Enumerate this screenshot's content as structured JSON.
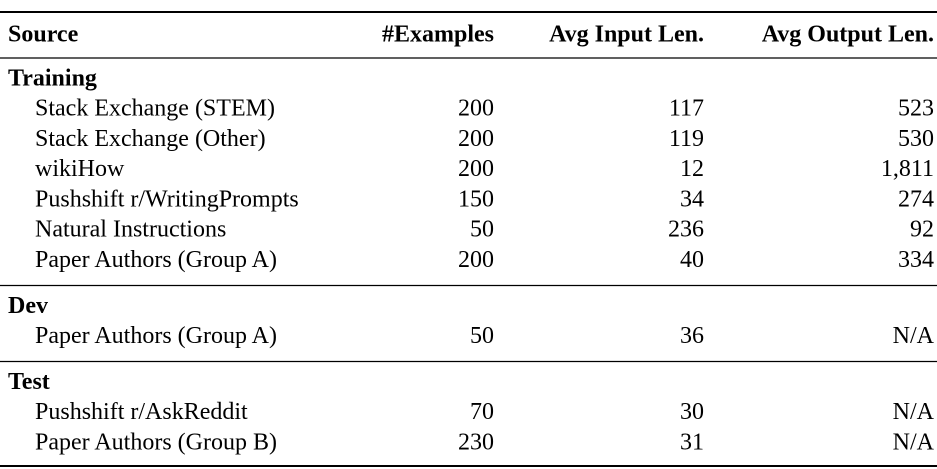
{
  "table": {
    "header": [
      "Source",
      "#Examples",
      "Avg Input Len.",
      "Avg Output Len."
    ],
    "sections": [
      {
        "title": "Training",
        "rows": [
          [
            "Stack Exchange (STEM)",
            "200",
            "117",
            "523"
          ],
          [
            "Stack Exchange (Other)",
            "200",
            "119",
            "530"
          ],
          [
            "wikiHow",
            "200",
            "12",
            "1,811"
          ],
          [
            "Pushshift r/WritingPrompts",
            "150",
            "34",
            "274"
          ],
          [
            "Natural Instructions",
            "50",
            "236",
            "92"
          ],
          [
            "Paper Authors (Group A)",
            "200",
            "40",
            "334"
          ]
        ]
      },
      {
        "title": "Dev",
        "rows": [
          [
            "Paper Authors (Group A)",
            "50",
            "36",
            "N/A"
          ]
        ]
      },
      {
        "title": "Test",
        "rows": [
          [
            "Pushshift r/AskReddit",
            "70",
            "30",
            "N/A"
          ],
          [
            "Paper Authors (Group B)",
            "230",
            "31",
            "N/A"
          ]
        ]
      }
    ]
  }
}
